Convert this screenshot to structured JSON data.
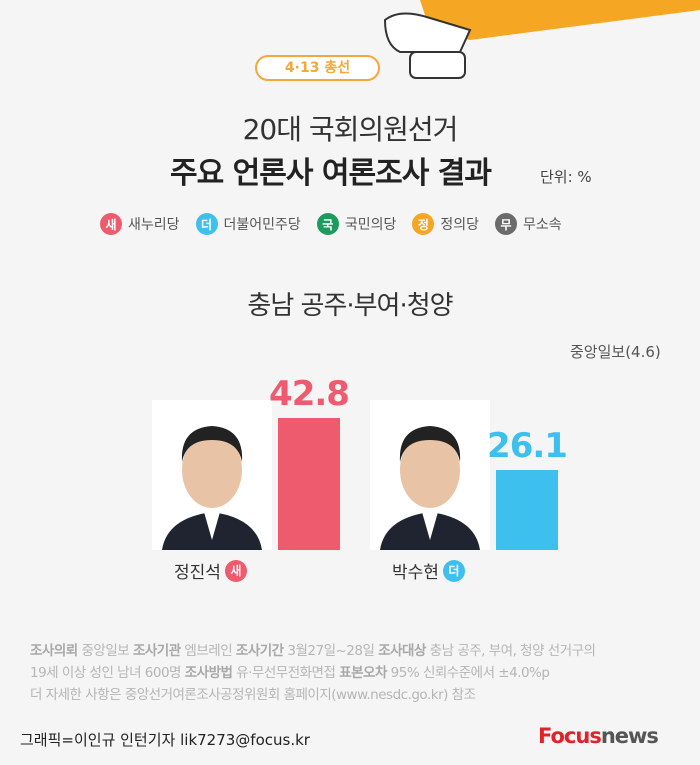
{
  "header": {
    "badge": "4·13 총선",
    "title_line1": "20대 국회의원선거",
    "title_line2": "주요 언론사 여론조사 결과",
    "unit": "단위: %"
  },
  "legend": [
    {
      "symbol": "새",
      "label": "새누리당",
      "color": "#ee5a6e"
    },
    {
      "symbol": "더",
      "label": "더불어민주당",
      "color": "#3ec0ee"
    },
    {
      "symbol": "국",
      "label": "국민의당",
      "color": "#1e9a5e"
    },
    {
      "symbol": "정",
      "label": "정의당",
      "color": "#f5a623"
    },
    {
      "symbol": "무",
      "label": "무소속",
      "color": "#6b6b6b"
    }
  ],
  "chart_data": {
    "type": "bar",
    "title": "충남 공주·부여·청양",
    "source": "중앙일보(4.6)",
    "categories": [
      "정진석",
      "박수현"
    ],
    "values": [
      42.8,
      26.1
    ],
    "parties": [
      "새",
      "더"
    ],
    "colors": [
      "#ee5a6e",
      "#3ec0ee"
    ],
    "ylim": [
      0,
      45
    ]
  },
  "notes": {
    "line1": [
      [
        "조사의뢰",
        " 중앙일보 "
      ],
      [
        "조사기관",
        " 엠브레인 "
      ],
      [
        "조사기간",
        " 3월27일~28일 "
      ],
      [
        "조사대상",
        " 충남 공주, 부여, 청양 선거구의"
      ]
    ],
    "line2_prefix": "19세 이상 성인 남녀 600명 ",
    "line2": [
      [
        "조사방법",
        " 유·무선무전화면접 "
      ],
      [
        "표본오차",
        " 95% 신뢰수준에서 ±4.0%p"
      ]
    ],
    "line3": "더 자세한 사항은 중앙선거여론조사공정위원회 홈페이지(www.nesdc.go.kr) 참조"
  },
  "credit": "그래픽=이인규 인턴기자 lik7273@focus.kr",
  "logo": {
    "brand": "Focus",
    "suffix": "news"
  }
}
